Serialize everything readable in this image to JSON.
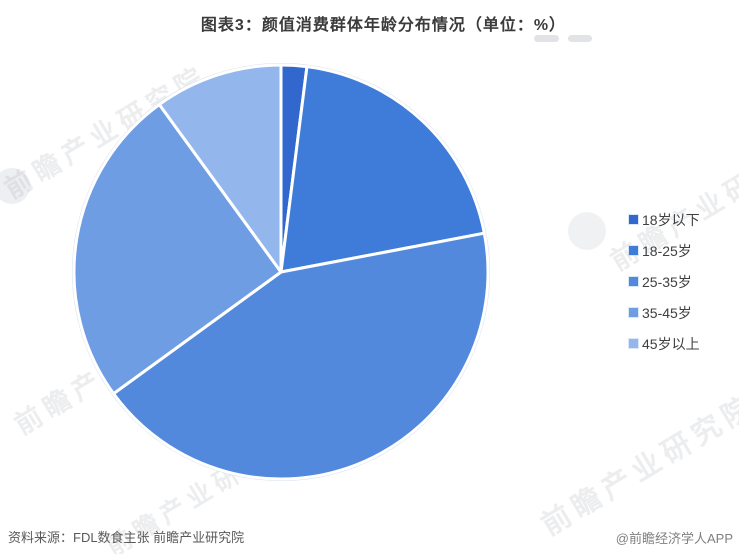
{
  "chart_data": {
    "type": "pie",
    "title": "图表3：颜值消费群体年龄分布情况（单位：%）",
    "unit": "%",
    "labels": [
      "18岁以下",
      "18-25岁",
      "25-35岁",
      "35-45岁",
      "45岁以上"
    ],
    "values": [
      2,
      20,
      43,
      25,
      10
    ],
    "colors": [
      "#3268CD",
      "#3F7CD9",
      "#5389DD",
      "#6E9DE4",
      "#93B7ED"
    ],
    "start_angle_deg": 0,
    "direction": "clockwise",
    "legend_position": "right",
    "slice_border_color": "#ffffff",
    "outer_rim_color": "#D7E0EE"
  },
  "footer": {
    "source": "资料来源：FDL数食主张  前瞻产业研究院",
    "credit": "@前瞻经济学人APP"
  },
  "watermark": {
    "text": "前瞻产业研究院"
  }
}
